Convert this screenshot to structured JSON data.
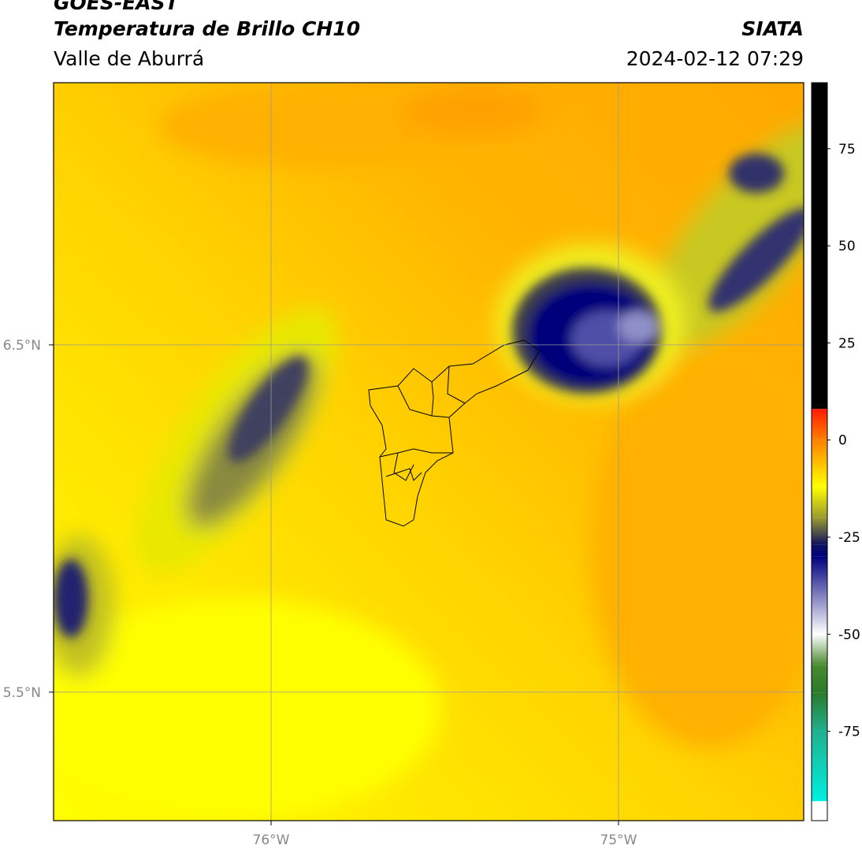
{
  "header": {
    "title": "GOES-EAST",
    "subtitle": "Temperatura de Brillo CH10",
    "region": "Valle de Aburrá",
    "source": "SIATA",
    "datetime": "2024-02-12 07:29"
  },
  "map": {
    "xlim": [
      -76.626,
      -74.467
    ],
    "ylim": [
      5.13,
      7.255
    ],
    "xticks": [
      {
        "value": -76,
        "label": "76°W"
      },
      {
        "value": -75,
        "label": "75°W"
      }
    ],
    "yticks": [
      {
        "value": 6.5,
        "label": "6.5°N"
      },
      {
        "value": 5.5,
        "label": "5.5°N"
      }
    ],
    "grid": true
  },
  "colorbar": {
    "lim": [
      -98,
      92
    ],
    "ticks": [
      75,
      50,
      25,
      0,
      -25,
      -50,
      -75
    ],
    "stops": [
      {
        "value": 92,
        "color": "#000000"
      },
      {
        "value": 8,
        "color": "#000000"
      },
      {
        "value": 8,
        "color": "#ff1a00"
      },
      {
        "value": 0,
        "color": "#ff8000"
      },
      {
        "value": -12,
        "color": "#ffff00"
      },
      {
        "value": -20,
        "color": "#9a9a30"
      },
      {
        "value": -27,
        "color": "#101060"
      },
      {
        "value": -30,
        "color": "#000080"
      },
      {
        "value": -40,
        "color": "#8080c0"
      },
      {
        "value": -50,
        "color": "#ffffff"
      },
      {
        "value": -58,
        "color": "#4a8a30"
      },
      {
        "value": -65,
        "color": "#2a7a2a"
      },
      {
        "value": -75,
        "color": "#20b090"
      },
      {
        "value": -93,
        "color": "#00f0e0"
      },
      {
        "value": -93,
        "color": "#ffffff"
      },
      {
        "value": -98,
        "color": "#ffffff"
      }
    ]
  }
}
